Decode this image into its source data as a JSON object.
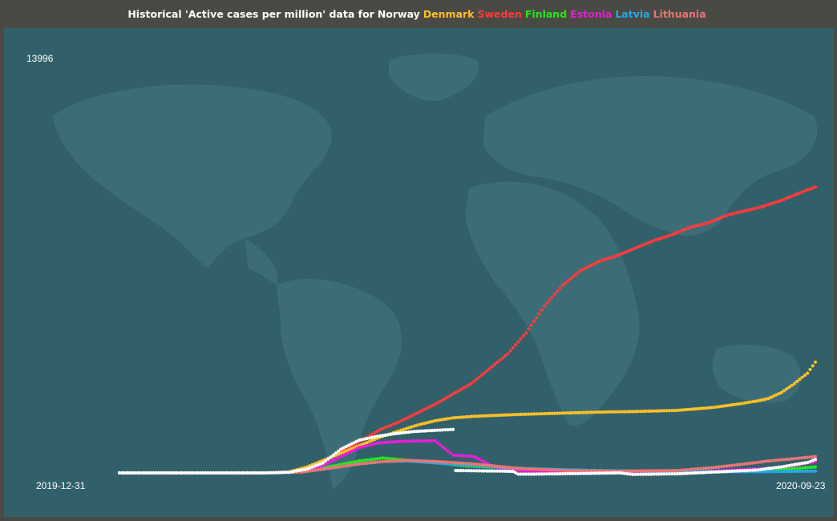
{
  "chart_data": {
    "type": "scatter",
    "title_prefix": "Historical 'Active cases per million' data for",
    "x_start": "2019-12-31",
    "x_end": "2020-09-23",
    "y_max_label": "13996",
    "ylim": [
      0,
      13996
    ],
    "series": [
      {
        "name": "Norway",
        "color": "#ffffff",
        "x": [
          "2019-12-31",
          "2020-02-25",
          "2020-03-05",
          "2020-03-12",
          "2020-03-18",
          "2020-03-25",
          "2020-04-01",
          "2020-04-08",
          "2020-04-15",
          "2020-04-22",
          "2020-04-30",
          "2020-05-07",
          "2020-05-08",
          "2020-05-25",
          "2020-05-30",
          "2020-06-01",
          "2020-06-07",
          "2020-06-25",
          "2020-07-10",
          "2020-07-15",
          "2020-08-01",
          "2020-08-20",
          "2020-09-01",
          "2020-09-05",
          "2020-09-10",
          "2020-09-15",
          "2020-09-20",
          "2020-09-23"
        ],
        "y": [
          0,
          0,
          20,
          130,
          330,
          800,
          1100,
          1230,
          1320,
          1390,
          1430,
          1460,
          80,
          60,
          50,
          -40,
          -40,
          -20,
          0,
          -50,
          -30,
          50,
          100,
          150,
          200,
          280,
          350,
          450
        ]
      },
      {
        "name": "Denmark",
        "color": "#ffc027",
        "x": [
          "2019-12-31",
          "2020-02-25",
          "2020-03-05",
          "2020-03-12",
          "2020-03-19",
          "2020-03-26",
          "2020-04-02",
          "2020-04-09",
          "2020-04-16",
          "2020-04-23",
          "2020-04-30",
          "2020-05-07",
          "2020-05-15",
          "2020-05-31",
          "2020-06-15",
          "2020-07-01",
          "2020-07-15",
          "2020-08-01",
          "2020-08-15",
          "2020-08-25",
          "2020-09-01",
          "2020-09-05",
          "2020-09-10",
          "2020-09-15",
          "2020-09-20",
          "2020-09-23"
        ],
        "y": [
          0,
          0,
          30,
          200,
          450,
          700,
          950,
          1200,
          1400,
          1600,
          1750,
          1850,
          1900,
          1960,
          2000,
          2040,
          2060,
          2100,
          2200,
          2320,
          2420,
          2500,
          2700,
          3000,
          3350,
          3720
        ]
      },
      {
        "name": "Sweden",
        "color": "#ff3b3b",
        "x": [
          "2019-12-31",
          "2020-02-25",
          "2020-03-05",
          "2020-03-12",
          "2020-03-19",
          "2020-03-26",
          "2020-04-02",
          "2020-04-09",
          "2020-04-16",
          "2020-04-23",
          "2020-04-30",
          "2020-05-07",
          "2020-05-14",
          "2020-05-21",
          "2020-05-28",
          "2020-06-04",
          "2020-06-11",
          "2020-06-18",
          "2020-06-25",
          "2020-07-02",
          "2020-07-09",
          "2020-07-16",
          "2020-07-23",
          "2020-07-30",
          "2020-08-06",
          "2020-08-13",
          "2020-08-20",
          "2020-08-27",
          "2020-09-03",
          "2020-09-10",
          "2020-09-17",
          "2020-09-23"
        ],
        "y": [
          0,
          0,
          40,
          180,
          420,
          750,
          1100,
          1450,
          1700,
          2000,
          2300,
          2650,
          3000,
          3500,
          4000,
          4700,
          5600,
          6300,
          6800,
          7100,
          7300,
          7550,
          7800,
          8000,
          8250,
          8400,
          8650,
          8800,
          8950,
          9150,
          9400,
          9600
        ]
      },
      {
        "name": "Finland",
        "color": "#26e61a",
        "x": [
          "2019-12-31",
          "2020-02-25",
          "2020-03-10",
          "2020-03-20",
          "2020-04-01",
          "2020-04-10",
          "2020-04-20",
          "2020-05-01",
          "2020-05-10",
          "2020-05-20",
          "2020-06-01",
          "2020-06-10",
          "2020-06-20",
          "2020-07-01",
          "2020-07-20",
          "2020-08-10",
          "2020-08-25",
          "2020-09-05",
          "2020-09-15",
          "2020-09-23"
        ],
        "y": [
          0,
          0,
          50,
          200,
          400,
          500,
          420,
          350,
          250,
          200,
          160,
          120,
          80,
          40,
          -20,
          20,
          50,
          90,
          150,
          200
        ]
      },
      {
        "name": "Estonia",
        "color": "#e31fd6",
        "x": [
          "2019-12-31",
          "2020-02-25",
          "2020-03-10",
          "2020-03-18",
          "2020-03-25",
          "2020-04-01",
          "2020-04-08",
          "2020-04-15",
          "2020-04-22",
          "2020-04-30",
          "2020-05-07",
          "2020-05-15",
          "2020-05-25",
          "2020-06-05",
          "2020-06-20",
          "2020-07-10",
          "2020-08-10",
          "2020-09-05",
          "2020-09-15",
          "2020-09-23"
        ],
        "y": [
          0,
          0,
          40,
          250,
          550,
          850,
          1000,
          1050,
          1070,
          1080,
          600,
          550,
          100,
          60,
          30,
          20,
          40,
          150,
          250,
          380
        ]
      },
      {
        "name": "Latvia",
        "color": "#24a8e8",
        "x": [
          "2019-12-31",
          "2020-02-25",
          "2020-03-10",
          "2020-03-20",
          "2020-04-01",
          "2020-04-10",
          "2020-04-20",
          "2020-05-01",
          "2020-05-15",
          "2020-06-01",
          "2020-07-01",
          "2020-08-01",
          "2020-09-01",
          "2020-09-23"
        ],
        "y": [
          0,
          0,
          30,
          150,
          300,
          380,
          400,
          330,
          250,
          150,
          80,
          40,
          40,
          60
        ]
      },
      {
        "name": "Lithuania",
        "color": "#e87575",
        "x": [
          "2019-12-31",
          "2020-02-25",
          "2020-03-10",
          "2020-03-20",
          "2020-04-01",
          "2020-04-10",
          "2020-04-20",
          "2020-05-01",
          "2020-05-15",
          "2020-06-01",
          "2020-06-20",
          "2020-07-10",
          "2020-08-01",
          "2020-08-15",
          "2020-08-25",
          "2020-09-05",
          "2020-09-15",
          "2020-09-23"
        ],
        "y": [
          0,
          0,
          30,
          150,
          300,
          380,
          420,
          380,
          300,
          150,
          80,
          60,
          80,
          180,
          280,
          400,
          480,
          550
        ]
      }
    ]
  }
}
